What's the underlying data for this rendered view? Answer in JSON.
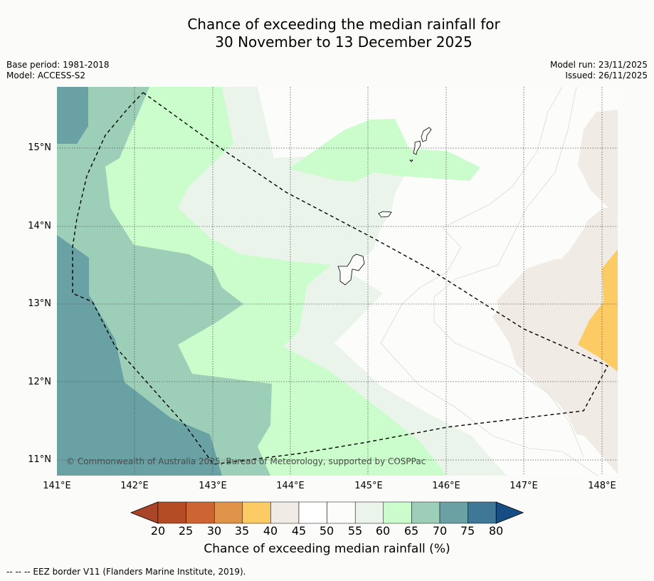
{
  "title_line1": "Chance of exceeding the median rainfall for",
  "title_line2": "30 November to 13 December 2025",
  "base_period": "Base period: 1981-2018",
  "model": "Model: ACCESS-S2",
  "model_run": "Model run: 23/11/2025",
  "issued": "Issued: 26/11/2025",
  "lat_labels": [
    "15°N",
    "14°N",
    "13°N",
    "12°N",
    "11°N"
  ],
  "lon_labels": [
    "141°E",
    "142°E",
    "143°E",
    "144°E",
    "145°E",
    "146°E",
    "147°E",
    "148°E"
  ],
  "copyright": "© Commonwealth of Australia 2025, Bureau of Meteorology, supported by COSPPac",
  "colorbar": {
    "labels": [
      "20",
      "25",
      "30",
      "35",
      "40",
      "45",
      "50",
      "55",
      "60",
      "65",
      "70",
      "75",
      "80"
    ],
    "colors": [
      "#a8452a",
      "#b44c26",
      "#cc6532",
      "#e0944a",
      "#fdcb63",
      "#f1ebe5",
      "#ffffff",
      "#fcfdfb",
      "#eaf4ea",
      "#cbfccb",
      "#9dcfb8",
      "#6aa1a5",
      "#3f7897",
      "#164e83"
    ],
    "title": "Chance of exceeding median rainfall (%)"
  },
  "footnote": "--  --  -- EEZ border V11 (Flanders Marine Institute, 2019)."
}
